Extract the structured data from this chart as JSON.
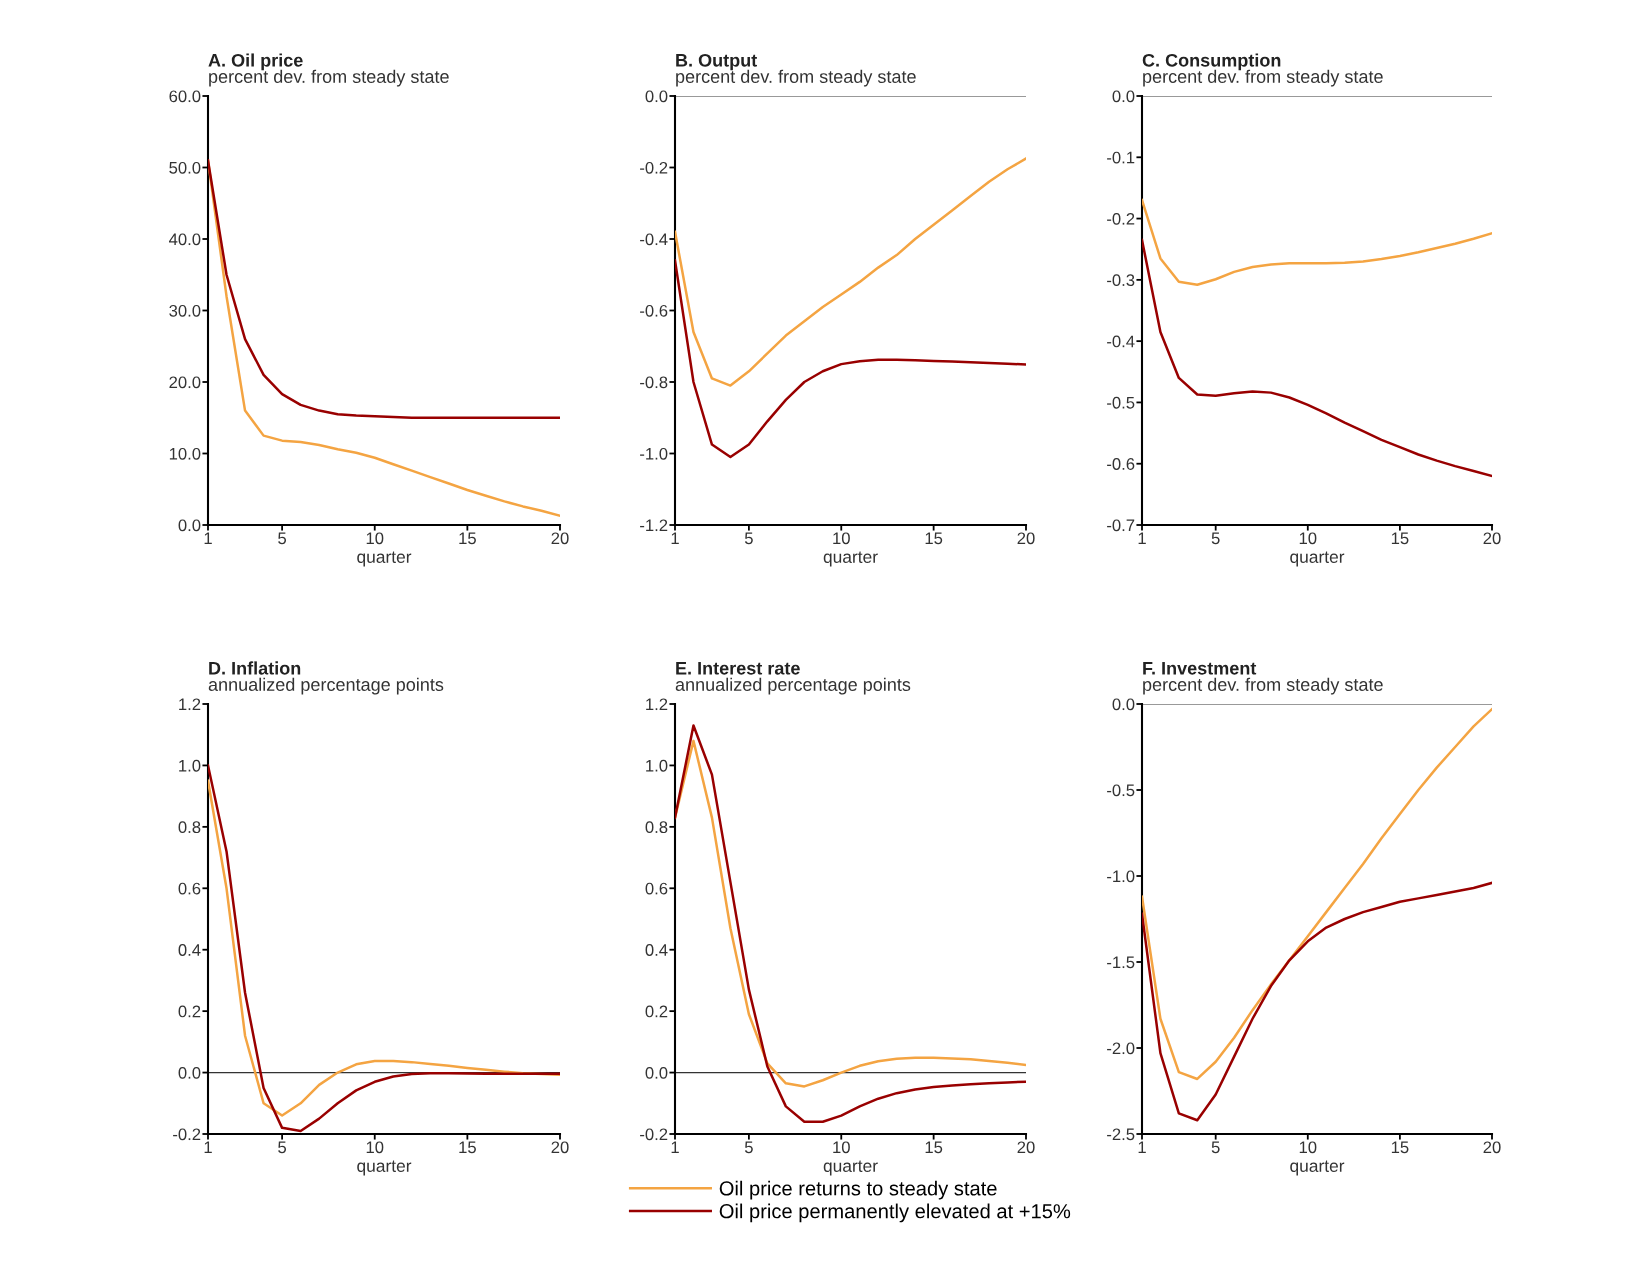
{
  "chart_data": [
    {
      "type": "line",
      "title": "A. Oil price",
      "subtitle": "percent dev. from steady state",
      "xlabel": "quarter",
      "x": [
        1,
        2,
        3,
        4,
        5,
        6,
        7,
        8,
        9,
        10,
        11,
        12,
        13,
        14,
        15,
        16,
        17,
        18,
        19,
        20
      ],
      "xlim": [
        1,
        20
      ],
      "xticks": [
        1,
        5,
        10,
        15,
        20
      ],
      "ylim": [
        0,
        60
      ],
      "yticks": [
        {
          "value": 0,
          "label": "0.0"
        },
        {
          "value": 10,
          "label": "10.0"
        },
        {
          "value": 20,
          "label": "20.0"
        },
        {
          "value": 30,
          "label": "30.0"
        },
        {
          "value": 40,
          "label": "40.0"
        },
        {
          "value": 50,
          "label": "50.0"
        },
        {
          "value": 60,
          "label": "60.0"
        }
      ],
      "grid": false,
      "series": [
        {
          "color": "#f4a442",
          "values": [
            51,
            32,
            16,
            12.5,
            11.8,
            11.6,
            11.2,
            10.6,
            10.1,
            9.4,
            8.5,
            7.6,
            6.7,
            5.8,
            4.9,
            4.1,
            3.3,
            2.6,
            2.0,
            1.3
          ]
        },
        {
          "color": "#990000",
          "values": [
            51,
            35,
            26,
            21,
            18.3,
            16.8,
            16.0,
            15.5,
            15.3,
            15.2,
            15.1,
            15.0,
            15.0,
            15.0,
            15.0,
            15.0,
            15.0,
            15.0,
            15.0,
            15.0
          ]
        }
      ]
    },
    {
      "type": "line",
      "title": "B. Output",
      "subtitle": "percent dev. from steady state",
      "xlabel": "quarter",
      "x": [
        1,
        2,
        3,
        4,
        5,
        6,
        7,
        8,
        9,
        10,
        11,
        12,
        13,
        14,
        15,
        16,
        17,
        18,
        19,
        20
      ],
      "xlim": [
        1,
        20
      ],
      "xticks": [
        1,
        5,
        10,
        15,
        20
      ],
      "ylim": [
        -1.2,
        0
      ],
      "yticks": [
        -1.2,
        {
          "value": -1,
          "label": "-1.0"
        },
        -0.8,
        -0.6,
        -0.4,
        -0.2,
        {
          "value": 0,
          "label": "0.0"
        }
      ],
      "grid": false,
      "ref_lines": [
        {
          "axis": "y",
          "value": 0,
          "color": "#999999"
        }
      ],
      "series": [
        {
          "color": "#f4a442",
          "values": [
            -0.38,
            -0.66,
            -0.79,
            -0.81,
            -0.77,
            -0.72,
            -0.67,
            -0.63,
            -0.59,
            -0.555,
            -0.52,
            -0.48,
            -0.445,
            -0.4,
            -0.36,
            -0.32,
            -0.28,
            -0.24,
            -0.205,
            -0.175
          ]
        },
        {
          "color": "#990000",
          "values": [
            -0.46,
            -0.8,
            -0.975,
            -1.01,
            -0.975,
            -0.91,
            -0.85,
            -0.8,
            -0.77,
            -0.75,
            -0.742,
            -0.738,
            -0.738,
            -0.739,
            -0.741,
            -0.743,
            -0.745,
            -0.747,
            -0.749,
            -0.751
          ]
        }
      ]
    },
    {
      "type": "line",
      "title": "C. Consumption",
      "subtitle": "percent dev. from steady state",
      "xlabel": "quarter",
      "x": [
        1,
        2,
        3,
        4,
        5,
        6,
        7,
        8,
        9,
        10,
        11,
        12,
        13,
        14,
        15,
        16,
        17,
        18,
        19,
        20
      ],
      "xlim": [
        1,
        20
      ],
      "xticks": [
        1,
        5,
        10,
        15,
        20
      ],
      "ylim": [
        -0.7,
        0
      ],
      "yticks": [
        -0.7,
        -0.6,
        -0.5,
        -0.4,
        -0.3,
        -0.2,
        -0.1,
        {
          "value": 0,
          "label": "0.0"
        }
      ],
      "grid": false,
      "ref_lines": [
        {
          "axis": "y",
          "value": 0,
          "color": "#999999"
        }
      ],
      "series": [
        {
          "color": "#f4a442",
          "values": [
            -0.17,
            -0.265,
            -0.303,
            -0.308,
            -0.299,
            -0.287,
            -0.279,
            -0.275,
            -0.273,
            -0.273,
            -0.273,
            -0.272,
            -0.27,
            -0.266,
            -0.261,
            -0.255,
            -0.248,
            -0.241,
            -0.233,
            -0.224
          ]
        },
        {
          "color": "#990000",
          "values": [
            -0.235,
            -0.385,
            -0.46,
            -0.487,
            -0.489,
            -0.485,
            -0.482,
            -0.484,
            -0.492,
            -0.504,
            -0.518,
            -0.533,
            -0.547,
            -0.561,
            -0.573,
            -0.585,
            -0.595,
            -0.604,
            -0.612,
            -0.62
          ]
        }
      ]
    },
    {
      "type": "line",
      "title": "D. Inflation",
      "subtitle": "annualized percentage points",
      "xlabel": "quarter",
      "x": [
        1,
        2,
        3,
        4,
        5,
        6,
        7,
        8,
        9,
        10,
        11,
        12,
        13,
        14,
        15,
        16,
        17,
        18,
        19,
        20
      ],
      "xlim": [
        1,
        20
      ],
      "xticks": [
        1,
        5,
        10,
        15,
        20
      ],
      "ylim": [
        -0.2,
        1.2
      ],
      "yticks": [
        -0.2,
        {
          "value": 0,
          "label": "0.0"
        },
        0.2,
        0.4,
        0.6,
        0.8,
        {
          "value": 1,
          "label": "1.0"
        },
        1.2
      ],
      "grid": false,
      "ref_lines": [
        {
          "axis": "y",
          "value": 0,
          "color": "#333333"
        }
      ],
      "series": [
        {
          "color": "#f4a442",
          "values": [
            0.95,
            0.6,
            0.12,
            -0.1,
            -0.14,
            -0.1,
            -0.04,
            0.0,
            0.027,
            0.038,
            0.038,
            0.034,
            0.028,
            0.022,
            0.015,
            0.009,
            0.003,
            -0.002,
            -0.005,
            -0.007
          ]
        },
        {
          "color": "#990000",
          "values": [
            1.0,
            0.72,
            0.26,
            -0.05,
            -0.18,
            -0.19,
            -0.15,
            -0.1,
            -0.058,
            -0.03,
            -0.013,
            -0.005,
            -0.002,
            -0.002,
            -0.003,
            -0.004,
            -0.004,
            -0.004,
            -0.004,
            -0.004
          ]
        }
      ]
    },
    {
      "type": "line",
      "title": "E. Interest rate",
      "subtitle": "annualized percentage points",
      "xlabel": "quarter",
      "x": [
        1,
        2,
        3,
        4,
        5,
        6,
        7,
        8,
        9,
        10,
        11,
        12,
        13,
        14,
        15,
        16,
        17,
        18,
        19,
        20
      ],
      "xlim": [
        1,
        20
      ],
      "xticks": [
        1,
        5,
        10,
        15,
        20
      ],
      "ylim": [
        -0.2,
        1.2
      ],
      "yticks": [
        -0.2,
        {
          "value": 0,
          "label": "0.0"
        },
        0.2,
        0.4,
        0.6,
        0.8,
        {
          "value": 1,
          "label": "1.0"
        },
        1.2
      ],
      "grid": false,
      "legend": "bottom",
      "ref_lines": [
        {
          "axis": "y",
          "value": 0,
          "color": "#333333"
        }
      ],
      "series": [
        {
          "name": "Oil price returns to steady state",
          "color": "#f4a442",
          "values": [
            0.83,
            1.08,
            0.83,
            0.47,
            0.19,
            0.03,
            -0.035,
            -0.045,
            -0.025,
            0.0,
            0.022,
            0.037,
            0.045,
            0.048,
            0.048,
            0.046,
            0.043,
            0.038,
            0.032,
            0.025
          ]
        },
        {
          "name": "Oil price permanently elevated at +15%",
          "color": "#990000",
          "values": [
            0.83,
            1.13,
            0.97,
            0.62,
            0.27,
            0.02,
            -0.11,
            -0.16,
            -0.16,
            -0.14,
            -0.11,
            -0.085,
            -0.067,
            -0.055,
            -0.047,
            -0.042,
            -0.038,
            -0.035,
            -0.032,
            -0.03
          ]
        }
      ]
    },
    {
      "type": "line",
      "title": "F. Investment",
      "subtitle": "percent dev. from steady state",
      "xlabel": "quarter",
      "x": [
        1,
        2,
        3,
        4,
        5,
        6,
        7,
        8,
        9,
        10,
        11,
        12,
        13,
        14,
        15,
        16,
        17,
        18,
        19,
        20
      ],
      "xlim": [
        1,
        20
      ],
      "xticks": [
        1,
        5,
        10,
        15,
        20
      ],
      "ylim": [
        -2.5,
        0
      ],
      "yticks": [
        -2.5,
        {
          "value": -2,
          "label": "-2.0"
        },
        -1.5,
        {
          "value": -1,
          "label": "-1.0"
        },
        -0.5,
        {
          "value": 0,
          "label": "0.0"
        }
      ],
      "grid": false,
      "ref_lines": [
        {
          "axis": "y",
          "value": 0,
          "color": "#999999"
        }
      ],
      "series": [
        {
          "color": "#f4a442",
          "values": [
            -1.12,
            -1.83,
            -2.14,
            -2.18,
            -2.08,
            -1.94,
            -1.78,
            -1.63,
            -1.49,
            -1.35,
            -1.21,
            -1.07,
            -0.93,
            -0.78,
            -0.64,
            -0.5,
            -0.37,
            -0.25,
            -0.13,
            -0.03
          ]
        },
        {
          "color": "#990000",
          "values": [
            -1.22,
            -2.03,
            -2.38,
            -2.42,
            -2.27,
            -2.05,
            -1.83,
            -1.64,
            -1.49,
            -1.38,
            -1.3,
            -1.25,
            -1.21,
            -1.18,
            -1.15,
            -1.13,
            -1.11,
            -1.09,
            -1.07,
            -1.04
          ]
        }
      ]
    }
  ]
}
